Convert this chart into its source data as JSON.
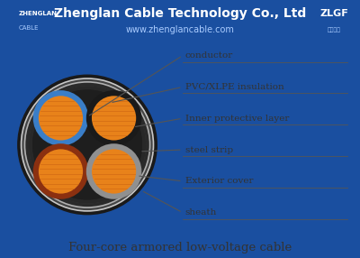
{
  "title": "Zhenglan Cable Technology Co., Ltd",
  "subtitle": "www.zhenglancable.com",
  "bottom_text": "Four-core armored low-voltage cable",
  "header_bg": "#1a4fa0",
  "border_color": "#1a4fa0",
  "body_bg": "#ffffff",
  "labels": [
    "conductor",
    "PVC/XLPE insulation",
    "Inner protective layer",
    "steel strip",
    "Exterior cover",
    "sheath"
  ],
  "colors": {
    "sheath_black": "#1a1a1a",
    "steel_silver": "#c8c8c8",
    "steel_silver2": "#b0b0b0",
    "outer_cover_dark": "#2a2a2a",
    "inner_prot_dark": "#282828",
    "filler_black": "#1e1e1e",
    "blue_insul": "#3a7ec8",
    "black_insul": "#1a1a1a",
    "brown_insul": "#8B3010",
    "gray_insul": "#909090",
    "conductor_orange": "#e8821a",
    "conductor_dark": "#c86010",
    "text_color": "#333333",
    "line_color": "#555555"
  }
}
